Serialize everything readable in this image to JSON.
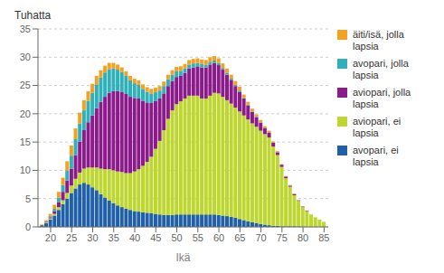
{
  "chart_data": {
    "type": "bar",
    "stacked": true,
    "x_label": "Ikä",
    "y_label": "Tuhatta",
    "x": [
      18,
      19,
      20,
      21,
      22,
      23,
      24,
      25,
      26,
      27,
      28,
      29,
      30,
      31,
      32,
      33,
      34,
      35,
      36,
      37,
      38,
      39,
      40,
      41,
      42,
      43,
      44,
      45,
      46,
      47,
      48,
      49,
      50,
      51,
      52,
      53,
      54,
      55,
      56,
      57,
      58,
      59,
      60,
      61,
      62,
      63,
      64,
      65,
      66,
      67,
      68,
      69,
      70,
      71,
      72,
      73,
      74,
      75,
      76,
      77,
      78,
      79,
      80,
      81,
      82,
      83,
      84,
      85
    ],
    "series": [
      {
        "name": "avopari, ei\nlapsia",
        "color": "#2060a8",
        "values": [
          0.3,
          0.7,
          1.3,
          2.0,
          3.0,
          4.0,
          5.0,
          6.0,
          6.8,
          7.5,
          7.8,
          7.5,
          7.0,
          6.5,
          5.8,
          5.2,
          4.7,
          4.2,
          3.8,
          3.5,
          3.2,
          3.0,
          2.8,
          2.7,
          2.6,
          2.5,
          2.4,
          2.3,
          2.2,
          2.1,
          2.1,
          2.1,
          2.2,
          2.2,
          2.2,
          2.2,
          2.2,
          2.2,
          2.2,
          2.2,
          2.2,
          2.2,
          2.1,
          2.0,
          1.9,
          1.8,
          1.6,
          1.4,
          1.2,
          1.0,
          0.8,
          0.7,
          0.5,
          0.4,
          0.3,
          0.2,
          0.2,
          0.1,
          0.1,
          0.1,
          0.1,
          0.1,
          0.0,
          0.0,
          0.0,
          0.0,
          0.0,
          0.0
        ]
      },
      {
        "name": "aviopari, ei\nlapsia",
        "color": "#bdd730",
        "values": [
          0.1,
          0.1,
          0.2,
          0.3,
          0.5,
          0.7,
          1.0,
          1.3,
          1.7,
          2.1,
          2.5,
          3.0,
          3.5,
          4.0,
          4.5,
          5.0,
          5.5,
          5.8,
          6.0,
          6.2,
          6.3,
          6.5,
          7.0,
          7.5,
          8.2,
          9.0,
          10.0,
          11.5,
          13.0,
          15.0,
          17.0,
          18.5,
          19.5,
          20.0,
          20.5,
          21.0,
          21.0,
          21.0,
          20.5,
          20.5,
          21.0,
          21.5,
          21.5,
          21.0,
          20.5,
          20.0,
          19.5,
          19.0,
          18.5,
          18.0,
          17.5,
          17.0,
          16.5,
          16.0,
          15.5,
          14.0,
          12.5,
          10.5,
          8.5,
          7.0,
          5.5,
          4.5,
          3.5,
          2.8,
          2.2,
          1.7,
          1.3,
          0.9
        ]
      },
      {
        "name": "aviopari, jolla\nlapsia",
        "color": "#8b1a8a",
        "values": [
          0.0,
          0.1,
          0.2,
          0.5,
          0.9,
          1.5,
          2.2,
          3.0,
          4.2,
          5.5,
          6.8,
          8.0,
          9.2,
          10.5,
          11.8,
          12.8,
          13.5,
          14.0,
          14.2,
          14.2,
          14.0,
          13.5,
          13.0,
          12.5,
          11.5,
          10.5,
          9.5,
          8.5,
          7.5,
          6.5,
          5.8,
          5.2,
          4.8,
          4.5,
          4.5,
          4.8,
          5.0,
          5.2,
          5.5,
          5.5,
          5.5,
          5.3,
          5.0,
          4.8,
          4.5,
          4.2,
          3.8,
          3.5,
          3.0,
          2.5,
          2.0,
          1.7,
          1.4,
          1.1,
          0.9,
          0.7,
          0.5,
          0.4,
          0.3,
          0.2,
          0.2,
          0.1,
          0.1,
          0.1,
          0.0,
          0.0,
          0.0,
          0.0
        ]
      },
      {
        "name": "avopari, jolla\nlapsia",
        "color": "#30b0b8",
        "values": [
          0.0,
          0.1,
          0.2,
          0.4,
          0.8,
          1.2,
          1.8,
          2.3,
          2.8,
          3.2,
          3.5,
          3.8,
          4.0,
          4.2,
          4.3,
          4.3,
          4.2,
          4.0,
          3.8,
          3.5,
          3.2,
          2.9,
          2.6,
          2.4,
          2.1,
          1.9,
          1.7,
          1.5,
          1.4,
          1.3,
          1.2,
          1.1,
          1.0,
          0.9,
          0.8,
          0.7,
          0.7,
          0.6,
          0.6,
          0.5,
          0.5,
          0.4,
          0.4,
          0.3,
          0.3,
          0.2,
          0.2,
          0.2,
          0.1,
          0.1,
          0.1,
          0.1,
          0.1,
          0.0,
          0.0,
          0.0,
          0.0,
          0.0,
          0.0,
          0.0,
          0.0,
          0.0,
          0.0,
          0.0,
          0.0,
          0.0,
          0.0,
          0.0
        ]
      },
      {
        "name": "äiti/isä, jolla\nlapsia",
        "color": "#f5a020",
        "values": [
          0.1,
          0.2,
          0.4,
          0.7,
          1.0,
          1.3,
          1.6,
          1.8,
          1.9,
          1.9,
          1.8,
          1.7,
          1.6,
          1.5,
          1.3,
          1.2,
          1.1,
          1.0,
          0.9,
          0.8,
          0.8,
          0.8,
          0.8,
          0.8,
          0.8,
          0.8,
          0.8,
          0.8,
          0.8,
          0.8,
          0.8,
          0.8,
          0.8,
          0.8,
          0.8,
          0.8,
          0.8,
          0.8,
          0.8,
          0.8,
          0.8,
          0.8,
          0.8,
          0.8,
          0.8,
          0.7,
          0.7,
          0.7,
          0.6,
          0.5,
          0.5,
          0.4,
          0.4,
          0.3,
          0.3,
          0.2,
          0.2,
          0.1,
          0.1,
          0.1,
          0.1,
          0.0,
          0.0,
          0.0,
          0.0,
          0.0,
          0.0,
          0.0
        ]
      }
    ],
    "xlim": [
      17,
      86
    ],
    "xticks": [
      20,
      25,
      30,
      35,
      40,
      45,
      50,
      55,
      60,
      65,
      70,
      75,
      80,
      85
    ],
    "ylim": [
      0,
      35
    ],
    "yticks": [
      0,
      5,
      10,
      15,
      20,
      25,
      30,
      35
    ],
    "grid": "y",
    "legend": "right"
  }
}
